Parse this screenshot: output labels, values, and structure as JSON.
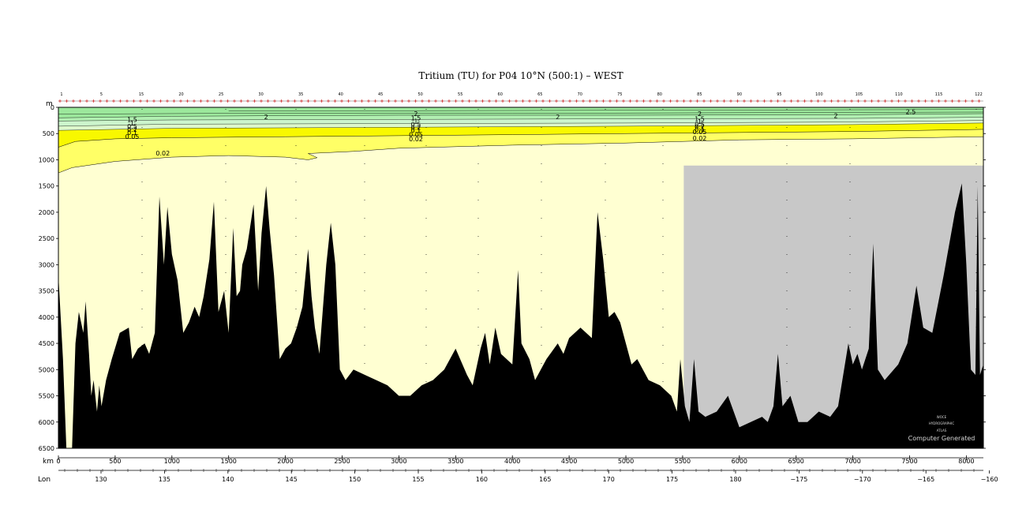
{
  "chart_data": {
    "type": "section",
    "title": "Tritium (TU) for P04 10°N (500:1) – WEST",
    "depth_axis_label": "m",
    "distance_axis_label": "km",
    "lon_axis_label": "Lon",
    "depth_ticks": [
      "0",
      "500",
      "1000",
      "1500",
      "2000",
      "2500",
      "3000",
      "3500",
      "4000",
      "4500",
      "5000",
      "5500",
      "6000",
      "6500"
    ],
    "depth_range": [
      0,
      6500
    ],
    "distance_ticks": [
      "0",
      "500",
      "1000",
      "1500",
      "2000",
      "2500",
      "3000",
      "3500",
      "4000",
      "4500",
      "5000",
      "5500",
      "6000",
      "6500",
      "7000",
      "7500",
      "8000"
    ],
    "distance_range": [
      0,
      8150
    ],
    "lon_ticks": [
      "130",
      "135",
      "140",
      "145",
      "150",
      "155",
      "160",
      "165",
      "170",
      "175",
      "180",
      "−175",
      "−170",
      "−165",
      "−160"
    ],
    "station_labels": [
      "1",
      "5",
      "15",
      "20",
      "25",
      "30",
      "35",
      "40",
      "45",
      "50",
      "55",
      "60",
      "65",
      "70",
      "75",
      "80",
      "85",
      "90",
      "95",
      "100",
      "105",
      "110",
      "115",
      "122"
    ],
    "contour_levels": [
      "2.5",
      "2",
      "1.5",
      "1",
      "0.5",
      "0.2",
      "0.1",
      "0.05",
      "0.02"
    ],
    "contour_labels": [
      {
        "text": "1.5",
        "km": 650,
        "depth": 230
      },
      {
        "text": "1",
        "km": 650,
        "depth": 300
      },
      {
        "text": "0.5",
        "km": 650,
        "depth": 360
      },
      {
        "text": "0.2",
        "km": 650,
        "depth": 420
      },
      {
        "text": "0.1",
        "km": 650,
        "depth": 480
      },
      {
        "text": "0.05",
        "km": 650,
        "depth": 560
      },
      {
        "text": "0.02",
        "km": 920,
        "depth": 870
      },
      {
        "text": "2",
        "km": 1830,
        "depth": 180
      },
      {
        "text": "2",
        "km": 3150,
        "depth": 120
      },
      {
        "text": "1.5",
        "km": 3150,
        "depth": 200
      },
      {
        "text": "1",
        "km": 3150,
        "depth": 260
      },
      {
        "text": "0.5",
        "km": 3150,
        "depth": 320
      },
      {
        "text": "0.2",
        "km": 3150,
        "depth": 380
      },
      {
        "text": "0.1",
        "km": 3150,
        "depth": 440
      },
      {
        "text": "0.05",
        "km": 3150,
        "depth": 520
      },
      {
        "text": "0.02",
        "km": 3150,
        "depth": 600
      },
      {
        "text": "2",
        "km": 4400,
        "depth": 180
      },
      {
        "text": "2",
        "km": 5650,
        "depth": 120
      },
      {
        "text": "1.5",
        "km": 5650,
        "depth": 220
      },
      {
        "text": "1",
        "km": 5650,
        "depth": 270
      },
      {
        "text": "0.5",
        "km": 5650,
        "depth": 320
      },
      {
        "text": "0.2",
        "km": 5650,
        "depth": 370
      },
      {
        "text": "0.1",
        "km": 5650,
        "depth": 420
      },
      {
        "text": "0.05",
        "km": 5650,
        "depth": 470
      },
      {
        "text": "0.02",
        "km": 5650,
        "depth": 590
      },
      {
        "text": "2",
        "km": 6850,
        "depth": 160
      },
      {
        "text": "2.5",
        "km": 7510,
        "depth": 80
      }
    ],
    "credit_line1": "WOCE",
    "credit_line2": "HYDROGRAPHIC",
    "credit_line3": "ATLAS",
    "credit_main": "Computer Generated",
    "colors": {
      "band_2_5": "#9ce89c",
      "band_1_5": "#b2f0b2",
      "band_0_2": "#ccf5cc",
      "band_0_1": "#ddf8cc",
      "band_0_05": "#f8f800",
      "band_0_02": "#ffff66",
      "background_low": "#ffffd2",
      "missing": "#c8c8c8",
      "bathymetry": "#000000"
    }
  }
}
